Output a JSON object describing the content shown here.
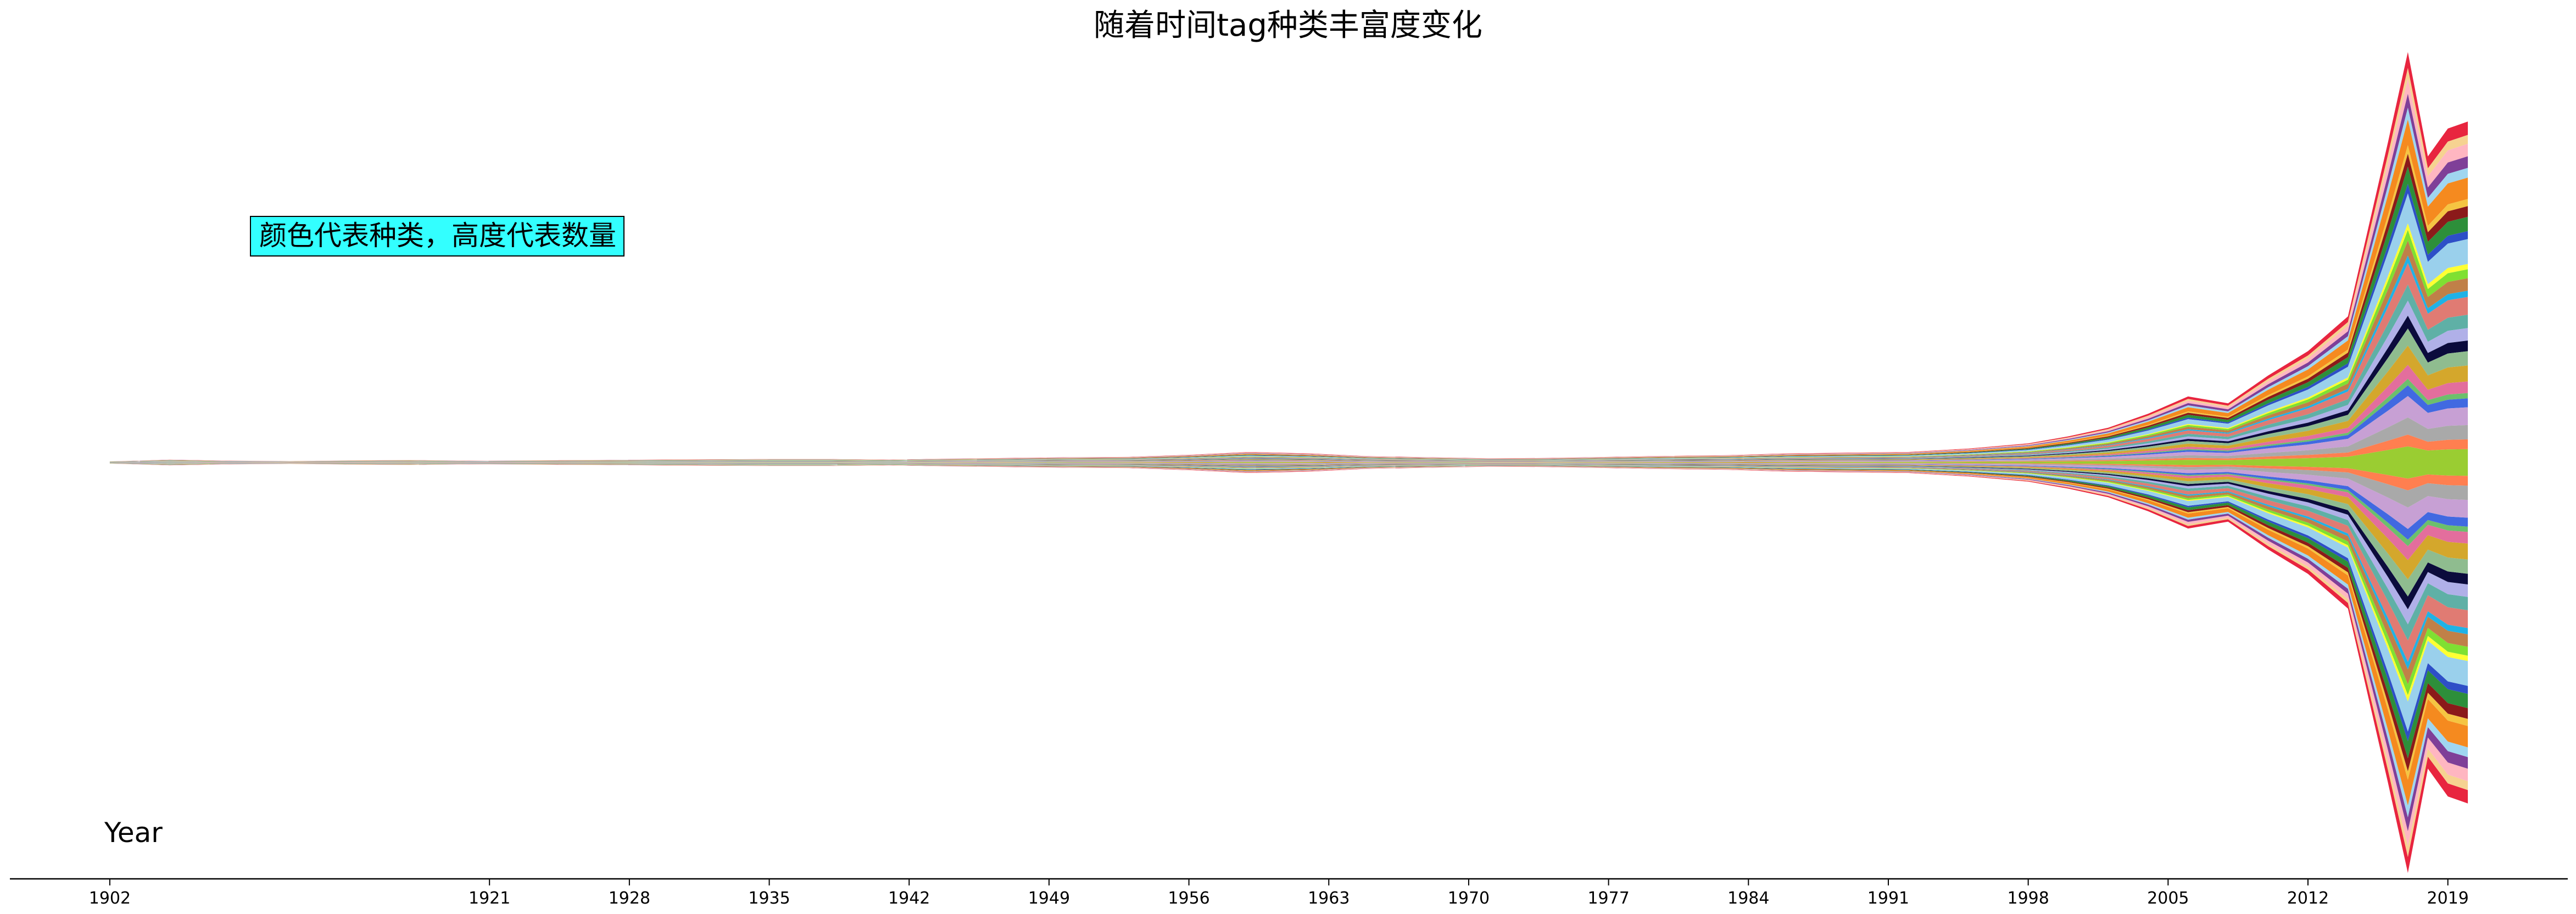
{
  "chart_data": {
    "type": "area",
    "stacking": "symmetric streamgraph (baseline centered)",
    "title": "随着时间tag种类丰富度变化",
    "xlabel": "Year",
    "ylabel": "",
    "annotation": "颜色代表种类，高度代表数量",
    "annotation_style": {
      "background": "#33ffff",
      "border": "#000000"
    },
    "grid": false,
    "legend": "none",
    "xlim": [
      1897,
      2025
    ],
    "ylim": [
      -60,
      60
    ],
    "x_ticks": [
      1902,
      1921,
      1928,
      1935,
      1942,
      1949,
      1956,
      1963,
      1970,
      1977,
      1984,
      1991,
      1998,
      2005,
      2012,
      2019
    ],
    "x": [
      1902,
      1905,
      1908,
      1911,
      1914,
      1917,
      1920,
      1923,
      1926,
      1929,
      1932,
      1935,
      1938,
      1941,
      1944,
      1947,
      1950,
      1953,
      1956,
      1959,
      1962,
      1965,
      1968,
      1971,
      1974,
      1977,
      1980,
      1983,
      1986,
      1989,
      1992,
      1995,
      1998,
      2000,
      2002,
      2004,
      2006,
      2008,
      2010,
      2012,
      2014,
      2016,
      2017,
      2018,
      2019,
      2020
    ],
    "total_height": [
      0.3,
      0.8,
      0.5,
      0.4,
      0.6,
      0.7,
      0.5,
      0.6,
      0.7,
      0.8,
      0.9,
      1.0,
      1.0,
      0.8,
      1.1,
      1.3,
      1.5,
      1.6,
      2.2,
      3.0,
      2.6,
      1.8,
      1.5,
      1.2,
      1.3,
      1.6,
      1.9,
      2.1,
      2.6,
      2.8,
      3.0,
      4.0,
      5.5,
      7.5,
      10.0,
      14.0,
      19.0,
      17.0,
      25.0,
      32.0,
      42.0,
      92.0,
      118.0,
      88.0,
      96.0,
      98.0
    ],
    "series_colors": [
      "#e8253f",
      "#f6d291",
      "#ffb6c1",
      "#7f3f98",
      "#a0d6f0",
      "#f58a1f",
      "#f5c542",
      "#8b1a1a",
      "#2d8f3a",
      "#2e4fc7",
      "#9ad0ec",
      "#ffff33",
      "#7fe032",
      "#c08048",
      "#20b2e6",
      "#e07b73",
      "#5fb0a6",
      "#b0b0e8",
      "#0b0b3c",
      "#8fbc8f",
      "#d4a72c",
      "#e36e9d",
      "#6cbf6c",
      "#4169e1",
      "#c7a0d4",
      "#a9a9a9",
      "#ff7f50",
      "#9acd32"
    ]
  }
}
